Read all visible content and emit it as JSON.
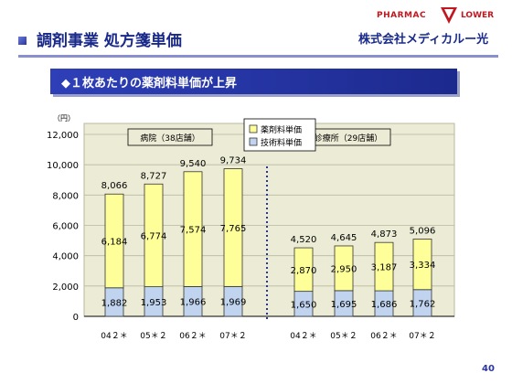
{
  "header": {
    "title": "調剤事業 処方箋単価"
  },
  "logo": {
    "brand_left": "PHARMAC",
    "brand_right": "LOWER",
    "company": "株式会社メディカルー光"
  },
  "banner": {
    "text": "◆１枚あたりの薬剤料単価が上昇"
  },
  "page_number": "40",
  "colors": {
    "drug_fill": "#ffff99",
    "tech_fill": "#c0d4f0",
    "plot_bg": "#ececd6",
    "divider": "#2a36a0"
  },
  "chart_data": {
    "type": "bar",
    "stacked": true,
    "unit_label": "（円）",
    "ylim": [
      0,
      12000
    ],
    "yticks": [
      "0",
      "2,000",
      "4,000",
      "6,000",
      "8,000",
      "10,000",
      "12,000"
    ],
    "legend": {
      "placement": "top-center",
      "items": [
        "薬剤料単価",
        "技術料単価"
      ]
    },
    "groups": [
      {
        "label": "病院（38店舗）",
        "categories": [
          "04２＊",
          "05＊２",
          "06２＊",
          "07＊２"
        ],
        "totals": [
          8066,
          8727,
          9540,
          9734
        ],
        "total_labels": [
          "8,066",
          "8,727",
          "9,540",
          "9,734"
        ],
        "series": [
          {
            "name": "技術料単価",
            "values": [
              1882,
              1953,
              1966,
              1969
            ],
            "labels": [
              "1,882",
              "1,953",
              "1,966",
              "1,969"
            ]
          },
          {
            "name": "薬剤料単価",
            "values": [
              6184,
              6774,
              7574,
              7765
            ],
            "labels": [
              "6,184",
              "6,774",
              "7,574",
              "7,765"
            ]
          }
        ]
      },
      {
        "label": "診療所（29店舗）",
        "categories": [
          "04２＊",
          "05＊２",
          "06２＊",
          "07＊２"
        ],
        "totals": [
          4520,
          4645,
          4873,
          5096
        ],
        "total_labels": [
          "4,520",
          "4,645",
          "4,873",
          "5,096"
        ],
        "series": [
          {
            "name": "技術料単価",
            "values": [
              1650,
              1695,
              1686,
              1762
            ],
            "labels": [
              "1,650",
              "1,695",
              "1,686",
              "1,762"
            ]
          },
          {
            "name": "薬剤料単価",
            "values": [
              2870,
              2950,
              3187,
              3334
            ],
            "labels": [
              "2,870",
              "2,950",
              "3,187",
              "3,334"
            ]
          }
        ]
      }
    ]
  }
}
